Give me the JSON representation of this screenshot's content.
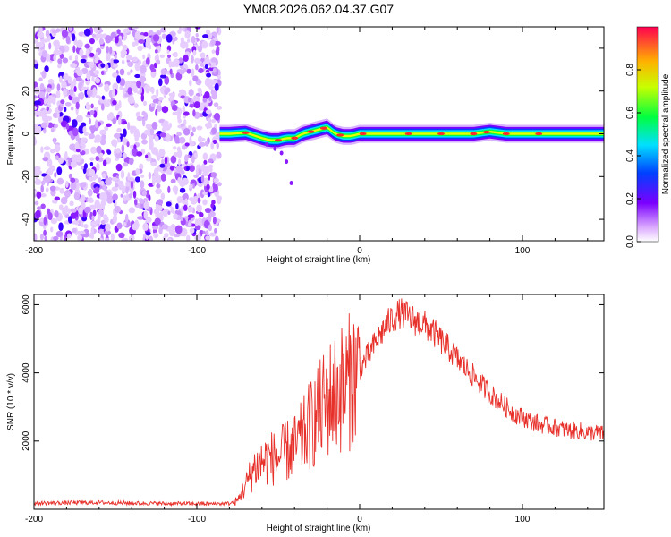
{
  "title": "YM08.2026.062.04.37.G07",
  "chart_data": [
    {
      "type": "heatmap",
      "xlabel": "Height of straight line (km)",
      "ylabel": "Frequency (Hz)",
      "xlim": [
        -200,
        150
      ],
      "ylim": [
        -50,
        50
      ],
      "xticks": [
        -200,
        -100,
        0,
        100
      ],
      "xtick_labels": [
        "-200",
        "-100",
        "0",
        "100"
      ],
      "yticks": [
        -40,
        -20,
        0,
        20,
        40
      ],
      "ytick_labels": [
        "-40",
        "-20",
        "0",
        "20",
        "40"
      ],
      "noise_region_x": [
        -200,
        -86
      ],
      "signal_track": {
        "x": [
          -86,
          -80,
          -70,
          -60,
          -55,
          -50,
          -45,
          -40,
          -35,
          -30,
          -25,
          -20,
          -15,
          -10,
          -5,
          0,
          10,
          20,
          30,
          40,
          50,
          60,
          70,
          80,
          90,
          100,
          110,
          120,
          130,
          140,
          150
        ],
        "y": [
          0,
          0,
          0.5,
          -2,
          -3,
          -3,
          -2,
          -2,
          0,
          1,
          2,
          3,
          0,
          -1,
          -1,
          0,
          0,
          0,
          0,
          0,
          0,
          0,
          0,
          1,
          0,
          0,
          0,
          0,
          0,
          0,
          0
        ]
      },
      "colorbar": {
        "label": "Normalized spectral amplitude",
        "range": [
          0,
          1
        ],
        "ticks": [
          0.0,
          0.2,
          0.4,
          0.6,
          0.8
        ],
        "tick_labels": [
          "0.0",
          "0.2",
          "0.4",
          "0.6",
          "0.8"
        ]
      }
    },
    {
      "type": "line",
      "xlabel": "Height of straight line (km)",
      "ylabel": "SNR (10 * v/v)",
      "xlim": [
        -200,
        150
      ],
      "ylim": [
        0,
        6300
      ],
      "xticks": [
        -200,
        -100,
        0,
        100
      ],
      "xtick_labels": [
        "-200",
        "-100",
        "0",
        "100"
      ],
      "yticks": [
        2000,
        4000,
        6000
      ],
      "ytick_labels": [
        "2000",
        "4000",
        "6000"
      ],
      "color": "#e8302a",
      "series": [
        {
          "name": "SNR",
          "x": [
            -200,
            -180,
            -160,
            -140,
            -120,
            -100,
            -90,
            -80,
            -75,
            -70,
            -65,
            -60,
            -55,
            -50,
            -45,
            -40,
            -35,
            -30,
            -25,
            -20,
            -15,
            -10,
            -5,
            0,
            5,
            10,
            15,
            20,
            25,
            30,
            35,
            40,
            45,
            50,
            55,
            60,
            65,
            70,
            75,
            80,
            85,
            90,
            95,
            100,
            105,
            110,
            115,
            120,
            125,
            130,
            135,
            140,
            145,
            150
          ],
          "values": [
            180,
            190,
            200,
            180,
            170,
            160,
            160,
            170,
            250,
            700,
            1200,
            1400,
            1500,
            1500,
            1700,
            1800,
            2100,
            2500,
            2800,
            3200,
            3400,
            3600,
            3800,
            4100,
            4500,
            4900,
            5300,
            5600,
            5750,
            5650,
            5500,
            5400,
            5200,
            4950,
            4700,
            4400,
            4150,
            3900,
            3650,
            3400,
            3200,
            3000,
            2800,
            2700,
            2600,
            2500,
            2450,
            2400,
            2350,
            2300,
            2300,
            2250,
            2250,
            2200
          ]
        }
      ]
    }
  ]
}
